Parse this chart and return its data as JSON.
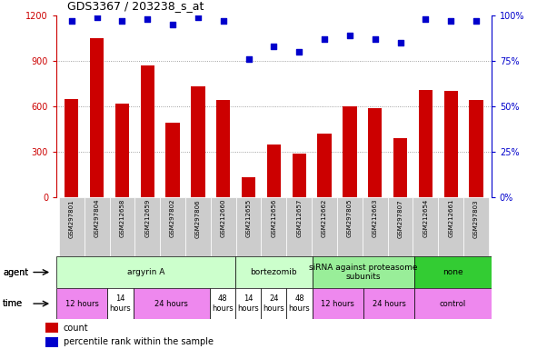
{
  "title": "GDS3367 / 203238_s_at",
  "samples": [
    "GSM297801",
    "GSM297804",
    "GSM212658",
    "GSM212659",
    "GSM297802",
    "GSM297806",
    "GSM212660",
    "GSM212655",
    "GSM212656",
    "GSM212657",
    "GSM212662",
    "GSM297805",
    "GSM212663",
    "GSM297807",
    "GSM212654",
    "GSM212661",
    "GSM297803"
  ],
  "counts": [
    650,
    1050,
    620,
    870,
    490,
    730,
    640,
    130,
    350,
    290,
    420,
    600,
    590,
    390,
    710,
    700,
    645
  ],
  "percentiles": [
    97,
    99,
    97,
    98,
    95,
    99,
    97,
    76,
    83,
    80,
    87,
    89,
    87,
    85,
    98,
    97,
    97
  ],
  "bar_color": "#cc0000",
  "dot_color": "#0000cc",
  "ylim_left": [
    0,
    1200
  ],
  "ylim_right": [
    0,
    100
  ],
  "yticks_left": [
    0,
    300,
    600,
    900,
    1200
  ],
  "yticks_right": [
    0,
    25,
    50,
    75,
    100
  ],
  "agent_groups": [
    {
      "label": "argyrin A",
      "start": 0,
      "end": 7,
      "color": "#ccffcc"
    },
    {
      "label": "bortezomib",
      "start": 7,
      "end": 10,
      "color": "#ccffcc"
    },
    {
      "label": "siRNA against proteasome\nsubunits",
      "start": 10,
      "end": 14,
      "color": "#99ee99"
    },
    {
      "label": "none",
      "start": 14,
      "end": 17,
      "color": "#33cc33"
    }
  ],
  "time_groups": [
    {
      "label": "12 hours",
      "start": 0,
      "end": 2,
      "color": "#ee88ee"
    },
    {
      "label": "14\nhours",
      "start": 2,
      "end": 3,
      "color": "#ffffff"
    },
    {
      "label": "24 hours",
      "start": 3,
      "end": 6,
      "color": "#ee88ee"
    },
    {
      "label": "48\nhours",
      "start": 6,
      "end": 7,
      "color": "#ffffff"
    },
    {
      "label": "14\nhours",
      "start": 7,
      "end": 8,
      "color": "#ffffff"
    },
    {
      "label": "24\nhours",
      "start": 8,
      "end": 9,
      "color": "#ffffff"
    },
    {
      "label": "48\nhours",
      "start": 9,
      "end": 10,
      "color": "#ffffff"
    },
    {
      "label": "12 hours",
      "start": 10,
      "end": 12,
      "color": "#ee88ee"
    },
    {
      "label": "24 hours",
      "start": 12,
      "end": 14,
      "color": "#ee88ee"
    },
    {
      "label": "control",
      "start": 14,
      "end": 17,
      "color": "#ee88ee"
    }
  ],
  "legend_count_color": "#cc0000",
  "legend_dot_color": "#0000cc",
  "grid_color": "#888888",
  "tick_label_color": "#cc0000",
  "right_tick_color": "#0000cc",
  "header_bg": "#cccccc"
}
